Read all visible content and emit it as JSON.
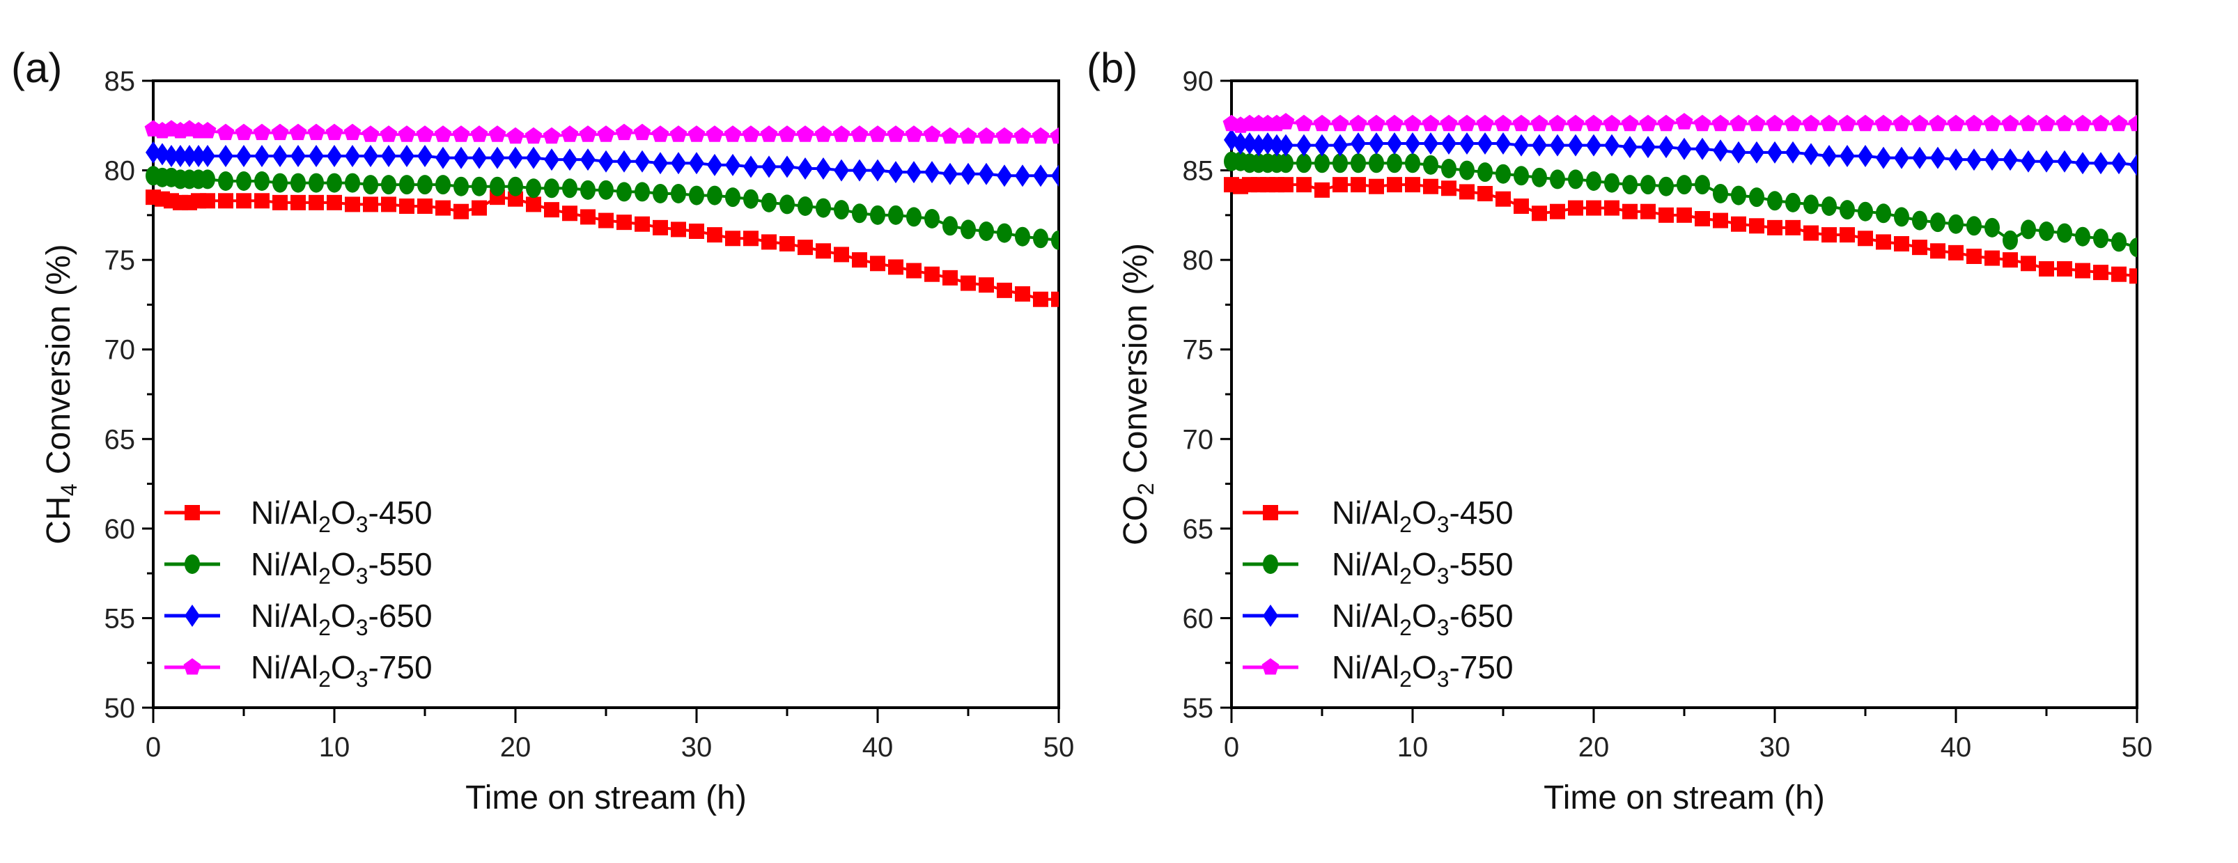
{
  "chart_data": [
    {
      "type": "line",
      "panel_label": "(a)",
      "xlabel": "Time on stream (h)",
      "ylabel_parts": [
        "CH",
        "4",
        " Conversion (%)"
      ],
      "ylabel": "CH4 Conversion (%)",
      "xlim": [
        0,
        50
      ],
      "ylim": [
        50,
        85
      ],
      "xticks": [
        0,
        10,
        20,
        30,
        40,
        50
      ],
      "yticks": [
        50,
        55,
        60,
        65,
        70,
        75,
        80,
        85
      ],
      "legend_position": "bottom-left",
      "x": [
        0,
        0.5,
        1,
        1.5,
        2,
        2.5,
        3,
        4,
        5,
        6,
        7,
        8,
        9,
        10,
        11,
        12,
        13,
        14,
        15,
        16,
        17,
        18,
        19,
        20,
        21,
        22,
        23,
        24,
        25,
        26,
        27,
        28,
        29,
        30,
        31,
        32,
        33,
        34,
        35,
        36,
        37,
        38,
        39,
        40,
        41,
        42,
        43,
        44,
        45,
        46,
        47,
        48,
        49,
        50
      ],
      "series": [
        {
          "name": "Ni/Al2O3-450",
          "label_parts": [
            "Ni/Al",
            "2",
            "O",
            "3",
            "-450"
          ],
          "color": "#ff0000",
          "marker": "square",
          "values": [
            78.5,
            78.4,
            78.3,
            78.2,
            78.2,
            78.3,
            78.3,
            78.3,
            78.3,
            78.3,
            78.2,
            78.2,
            78.2,
            78.2,
            78.1,
            78.1,
            78.1,
            78.0,
            78.0,
            77.9,
            77.7,
            77.9,
            78.5,
            78.4,
            78.1,
            77.8,
            77.6,
            77.4,
            77.2,
            77.1,
            77.0,
            76.8,
            76.7,
            76.6,
            76.4,
            76.2,
            76.2,
            76.0,
            75.9,
            75.7,
            75.5,
            75.3,
            75.0,
            74.8,
            74.6,
            74.4,
            74.2,
            74.0,
            73.7,
            73.6,
            73.3,
            73.1,
            72.8,
            72.8
          ]
        },
        {
          "name": "Ni/Al2O3-550",
          "label_parts": [
            "Ni/Al",
            "2",
            "O",
            "3",
            "-550"
          ],
          "color": "#008000",
          "marker": "circle",
          "values": [
            79.7,
            79.6,
            79.6,
            79.5,
            79.5,
            79.5,
            79.5,
            79.4,
            79.4,
            79.4,
            79.3,
            79.3,
            79.3,
            79.3,
            79.3,
            79.2,
            79.2,
            79.2,
            79.2,
            79.2,
            79.1,
            79.1,
            79.1,
            79.1,
            79.0,
            79.0,
            79.0,
            78.9,
            78.9,
            78.8,
            78.8,
            78.7,
            78.7,
            78.6,
            78.6,
            78.5,
            78.4,
            78.2,
            78.1,
            78.0,
            77.9,
            77.8,
            77.6,
            77.5,
            77.5,
            77.4,
            77.3,
            76.9,
            76.7,
            76.6,
            76.5,
            76.3,
            76.2,
            76.1
          ]
        },
        {
          "name": "Ni/Al2O3-650",
          "label_parts": [
            "Ni/Al",
            "2",
            "O",
            "3",
            "-650"
          ],
          "color": "#0000ff",
          "marker": "diamond",
          "values": [
            81.0,
            80.9,
            80.8,
            80.8,
            80.8,
            80.8,
            80.8,
            80.8,
            80.8,
            80.8,
            80.8,
            80.8,
            80.8,
            80.8,
            80.8,
            80.8,
            80.8,
            80.8,
            80.8,
            80.7,
            80.7,
            80.7,
            80.7,
            80.7,
            80.7,
            80.6,
            80.6,
            80.6,
            80.5,
            80.5,
            80.5,
            80.4,
            80.4,
            80.4,
            80.3,
            80.3,
            80.2,
            80.2,
            80.2,
            80.1,
            80.1,
            80.0,
            80.0,
            80.0,
            79.9,
            79.9,
            79.9,
            79.8,
            79.8,
            79.8,
            79.7,
            79.7,
            79.7,
            79.7
          ]
        },
        {
          "name": "Ni/Al2O3-750",
          "label_parts": [
            "Ni/Al",
            "2",
            "O",
            "3",
            "-750"
          ],
          "color": "#ff00ff",
          "marker": "pentagon",
          "values": [
            82.3,
            82.2,
            82.3,
            82.2,
            82.3,
            82.2,
            82.2,
            82.1,
            82.1,
            82.1,
            82.1,
            82.1,
            82.1,
            82.1,
            82.1,
            82.0,
            82.0,
            82.0,
            82.0,
            82.0,
            82.0,
            82.0,
            82.0,
            81.9,
            81.9,
            81.9,
            82.0,
            82.0,
            82.0,
            82.1,
            82.1,
            82.0,
            82.0,
            82.0,
            82.0,
            82.0,
            82.0,
            82.0,
            82.0,
            82.0,
            82.0,
            82.0,
            82.0,
            82.0,
            82.0,
            82.0,
            82.0,
            81.9,
            81.9,
            81.9,
            81.9,
            81.9,
            81.9,
            81.9
          ]
        }
      ]
    },
    {
      "type": "line",
      "panel_label": "(b)",
      "xlabel": "Time on stream (h)",
      "ylabel_parts": [
        "CO",
        "2",
        " Conversion (%)"
      ],
      "ylabel": "CO2 Conversion (%)",
      "xlim": [
        0,
        50
      ],
      "ylim": [
        55,
        90
      ],
      "xticks": [
        0,
        10,
        20,
        30,
        40,
        50
      ],
      "yticks": [
        55,
        60,
        65,
        70,
        75,
        80,
        85,
        90
      ],
      "legend_position": "bottom-left",
      "x": [
        0,
        0.5,
        1,
        1.5,
        2,
        2.5,
        3,
        4,
        5,
        6,
        7,
        8,
        9,
        10,
        11,
        12,
        13,
        14,
        15,
        16,
        17,
        18,
        19,
        20,
        21,
        22,
        23,
        24,
        25,
        26,
        27,
        28,
        29,
        30,
        31,
        32,
        33,
        34,
        35,
        36,
        37,
        38,
        39,
        40,
        41,
        42,
        43,
        44,
        45,
        46,
        47,
        48,
        49,
        50
      ],
      "series": [
        {
          "name": "Ni/Al2O3-450",
          "label_parts": [
            "Ni/Al",
            "2",
            "O",
            "3",
            "-450"
          ],
          "color": "#ff0000",
          "marker": "square",
          "values": [
            84.2,
            84.1,
            84.2,
            84.2,
            84.2,
            84.2,
            84.2,
            84.2,
            83.9,
            84.2,
            84.2,
            84.1,
            84.2,
            84.2,
            84.1,
            84.0,
            83.8,
            83.7,
            83.4,
            83.0,
            82.6,
            82.7,
            82.9,
            82.9,
            82.9,
            82.7,
            82.7,
            82.5,
            82.5,
            82.3,
            82.2,
            82.0,
            81.9,
            81.8,
            81.8,
            81.5,
            81.4,
            81.4,
            81.2,
            81.0,
            80.9,
            80.7,
            80.5,
            80.4,
            80.2,
            80.1,
            80.0,
            79.8,
            79.5,
            79.5,
            79.4,
            79.3,
            79.2,
            79.1
          ]
        },
        {
          "name": "Ni/Al2O3-550",
          "label_parts": [
            "Ni/Al",
            "2",
            "O",
            "3",
            "-550"
          ],
          "color": "#008000",
          "marker": "circle",
          "values": [
            85.5,
            85.5,
            85.4,
            85.4,
            85.4,
            85.4,
            85.4,
            85.4,
            85.4,
            85.4,
            85.4,
            85.4,
            85.4,
            85.4,
            85.3,
            85.1,
            85.0,
            84.9,
            84.8,
            84.7,
            84.6,
            84.5,
            84.5,
            84.4,
            84.3,
            84.2,
            84.2,
            84.1,
            84.2,
            84.2,
            83.7,
            83.6,
            83.5,
            83.3,
            83.2,
            83.1,
            83.0,
            82.8,
            82.7,
            82.6,
            82.4,
            82.2,
            82.1,
            82.0,
            81.9,
            81.8,
            81.1,
            81.7,
            81.6,
            81.5,
            81.3,
            81.2,
            81.0,
            80.7
          ]
        },
        {
          "name": "Ni/Al2O3-650",
          "label_parts": [
            "Ni/Al",
            "2",
            "O",
            "3",
            "-650"
          ],
          "color": "#0000ff",
          "marker": "diamond",
          "values": [
            86.7,
            86.5,
            86.5,
            86.4,
            86.5,
            86.4,
            86.4,
            86.4,
            86.4,
            86.4,
            86.5,
            86.5,
            86.5,
            86.5,
            86.5,
            86.5,
            86.5,
            86.5,
            86.5,
            86.4,
            86.4,
            86.4,
            86.4,
            86.4,
            86.4,
            86.3,
            86.3,
            86.3,
            86.2,
            86.2,
            86.1,
            86.0,
            86.0,
            86.0,
            86.0,
            85.9,
            85.8,
            85.8,
            85.8,
            85.7,
            85.7,
            85.7,
            85.7,
            85.6,
            85.6,
            85.6,
            85.6,
            85.5,
            85.5,
            85.5,
            85.4,
            85.4,
            85.4,
            85.3
          ]
        },
        {
          "name": "Ni/Al2O3-750",
          "label_parts": [
            "Ni/Al",
            "2",
            "O",
            "3",
            "-750"
          ],
          "color": "#ff00ff",
          "marker": "pentagon",
          "values": [
            87.6,
            87.5,
            87.6,
            87.6,
            87.6,
            87.6,
            87.7,
            87.6,
            87.6,
            87.6,
            87.6,
            87.6,
            87.6,
            87.6,
            87.6,
            87.6,
            87.6,
            87.6,
            87.6,
            87.6,
            87.6,
            87.6,
            87.6,
            87.6,
            87.6,
            87.6,
            87.6,
            87.6,
            87.7,
            87.6,
            87.6,
            87.6,
            87.6,
            87.6,
            87.6,
            87.6,
            87.6,
            87.6,
            87.6,
            87.6,
            87.6,
            87.6,
            87.6,
            87.6,
            87.6,
            87.6,
            87.6,
            87.6,
            87.6,
            87.6,
            87.6,
            87.6,
            87.6,
            87.6
          ]
        }
      ]
    }
  ]
}
